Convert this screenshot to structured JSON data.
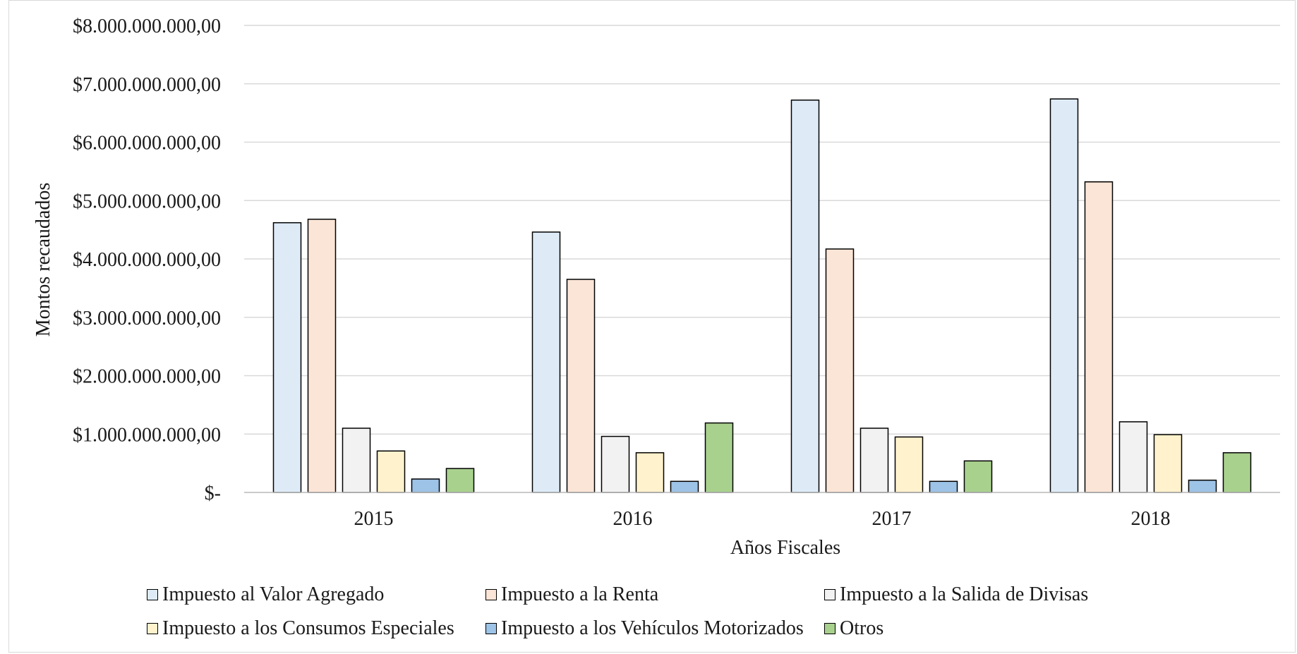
{
  "chart_data": {
    "type": "bar",
    "title": "",
    "xlabel": "Años Fiscales",
    "ylabel": "Montos recaudados",
    "ylim": [
      0,
      8000000000
    ],
    "grid": true,
    "legend_position": "bottom",
    "yticks": [
      {
        "value": 0,
        "label": "$-"
      },
      {
        "value": 1000000000,
        "label": "$1.000.000.000,00"
      },
      {
        "value": 2000000000,
        "label": "$2.000.000.000,00"
      },
      {
        "value": 3000000000,
        "label": "$3.000.000.000,00"
      },
      {
        "value": 4000000000,
        "label": "$4.000.000.000,00"
      },
      {
        "value": 5000000000,
        "label": "$5.000.000.000,00"
      },
      {
        "value": 6000000000,
        "label": "$6.000.000.000,00"
      },
      {
        "value": 7000000000,
        "label": "$7.000.000.000,00"
      },
      {
        "value": 8000000000,
        "label": "$8.000.000.000,00"
      }
    ],
    "categories": [
      "2015",
      "2016",
      "2017",
      "2018"
    ],
    "series": [
      {
        "name": "Impuesto al Valor Agregado",
        "color": "#deebf7",
        "values": [
          4620000000,
          4460000000,
          6720000000,
          6740000000
        ]
      },
      {
        "name": "Impuesto a la Renta",
        "color": "#fbe5d6",
        "values": [
          4680000000,
          3650000000,
          4170000000,
          5320000000
        ]
      },
      {
        "name": "Impuesto a la Salida de Divisas",
        "color": "#f2f2f2",
        "values": [
          1100000000,
          960000000,
          1100000000,
          1210000000
        ]
      },
      {
        "name": "Impuesto a los Consumos Especiales",
        "color": "#fff2cc",
        "values": [
          710000000,
          680000000,
          950000000,
          990000000
        ]
      },
      {
        "name": "Impuesto a los Vehículos Motorizados",
        "color": "#9dc3e6",
        "values": [
          230000000,
          190000000,
          190000000,
          210000000
        ]
      },
      {
        "name": "Otros",
        "color": "#a9d18e",
        "values": [
          410000000,
          1190000000,
          540000000,
          680000000
        ]
      }
    ]
  }
}
